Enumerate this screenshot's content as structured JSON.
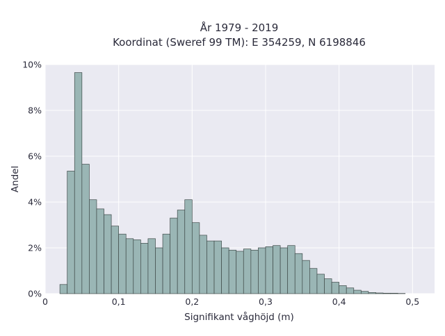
{
  "chart_data": {
    "type": "bar",
    "title_lines": [
      "År 1979 - 2019",
      "Koordinat (Sweref 99 TM): E 354259, N 6198846"
    ],
    "xlabel": "Signifikant våghöjd (m)",
    "ylabel": "Andel",
    "xlim": [
      0,
      0.53
    ],
    "ylim": [
      0,
      10
    ],
    "x_ticks": [
      0,
      0.1,
      0.2,
      0.3,
      0.4,
      0.5
    ],
    "x_tick_labels": [
      "0",
      "0,1",
      "0,2",
      "0,3",
      "0,4",
      "0,5"
    ],
    "y_ticks": [
      0,
      2,
      4,
      6,
      8,
      10
    ],
    "y_tick_labels": [
      "0%",
      "2%",
      "4%",
      "6%",
      "8%",
      "10%"
    ],
    "bin_width": 0.01,
    "bin_starts": [
      0.02,
      0.03,
      0.04,
      0.05,
      0.06,
      0.07,
      0.08,
      0.09,
      0.1,
      0.11,
      0.12,
      0.13,
      0.14,
      0.15,
      0.16,
      0.17,
      0.18,
      0.19,
      0.2,
      0.21,
      0.22,
      0.23,
      0.24,
      0.25,
      0.26,
      0.27,
      0.28,
      0.29,
      0.3,
      0.31,
      0.32,
      0.33,
      0.34,
      0.35,
      0.36,
      0.37,
      0.38,
      0.39,
      0.4,
      0.41,
      0.42,
      0.43,
      0.44,
      0.45,
      0.46,
      0.47,
      0.48
    ],
    "values": [
      0.4,
      5.35,
      9.65,
      5.65,
      4.1,
      3.7,
      3.45,
      2.95,
      2.6,
      2.4,
      2.35,
      2.2,
      2.4,
      2.0,
      2.6,
      3.3,
      3.65,
      4.1,
      3.1,
      2.55,
      2.3,
      2.3,
      2.0,
      1.9,
      1.85,
      1.95,
      1.9,
      2.0,
      2.05,
      2.1,
      2.0,
      2.1,
      1.75,
      1.45,
      1.1,
      0.85,
      0.65,
      0.5,
      0.35,
      0.25,
      0.15,
      0.1,
      0.05,
      0.03,
      0.02,
      0.02,
      0.01
    ],
    "colors": {
      "plot_background": "#eaeaf2",
      "grid": "#ffffff",
      "bar_fill": "#9ab6b5",
      "bar_edge": "#3f4a49"
    },
    "grid": true
  }
}
